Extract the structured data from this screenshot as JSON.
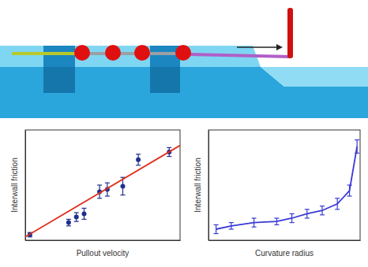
{
  "chart_data": [
    {
      "type": "scatter",
      "x_label": "Pullout velocity",
      "y_label": "Interwall friction",
      "xlim": [
        0,
        10
      ],
      "ylim": [
        0,
        10
      ],
      "tick_labels": false,
      "grid": false,
      "series": [
        {
          "type": "scatter",
          "color": "#1f2f8f",
          "marker": "circle",
          "x": [
            0.3,
            2.8,
            3.3,
            3.8,
            4.8,
            5.3,
            6.3,
            7.3,
            9.3
          ],
          "values": [
            0.5,
            1.6,
            2.1,
            2.4,
            4.4,
            4.6,
            4.9,
            7.3,
            8.0
          ],
          "errors": [
            0.2,
            0.3,
            0.4,
            0.5,
            0.6,
            0.6,
            0.8,
            0.5,
            0.4
          ]
        },
        {
          "type": "line",
          "color": "#e0301e",
          "marker": "none",
          "line_style": "solid",
          "x": [
            0,
            10
          ],
          "values": [
            0.3,
            8.6
          ]
        }
      ]
    },
    {
      "type": "line",
      "x_label": "Curvature radius",
      "y_label": "Interwall friction",
      "xlim": [
        0,
        10
      ],
      "ylim": [
        0,
        10
      ],
      "tick_labels": false,
      "grid": false,
      "series": [
        {
          "type": "line",
          "color": "#3a3ad6",
          "marker": "none",
          "line_style": "solid",
          "x": [
            0.5,
            1.5,
            3,
            4.5,
            5.5,
            6.5,
            7.5,
            8.5,
            9.3,
            9.8
          ],
          "values": [
            1.0,
            1.3,
            1.6,
            1.7,
            2.0,
            2.4,
            2.7,
            3.3,
            4.5,
            8.5
          ],
          "errors": [
            0.4,
            0.3,
            0.4,
            0.3,
            0.4,
            0.4,
            0.4,
            0.5,
            0.5,
            0.6
          ]
        }
      ]
    }
  ]
}
